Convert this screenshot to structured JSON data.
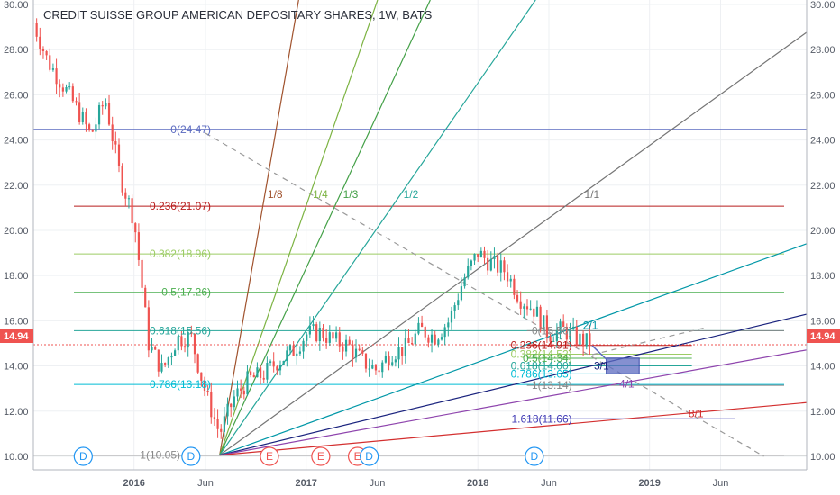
{
  "header": {
    "title": "CREDIT SUISSE GROUP AMERICAN DEPOSITARY SHARES, 1W, BATS"
  },
  "colors": {
    "up": "#26a69a",
    "down": "#ef5350",
    "grid": "#eef0f3",
    "price_line": "#ef5350"
  },
  "current_price": {
    "value": 14.94,
    "label": "14.94"
  },
  "chart_data": {
    "type": "candlestick",
    "title": "CREDIT SUISSE GROUP AMERICAN DEPOSITARY SHARES, 1W, BATS",
    "ylim": [
      9.4,
      30.2
    ],
    "xlim": [
      "2015-06-01",
      "2019-12-01"
    ],
    "y_ticks": [
      "10.00",
      "12.00",
      "14.00",
      "16.00",
      "18.00",
      "20.00",
      "22.00",
      "24.00",
      "26.00",
      "28.00",
      "30.00"
    ],
    "x_ticks": [
      {
        "label": "2016",
        "date": "2016-01-01",
        "bold": true
      },
      {
        "label": "Jun",
        "date": "2016-06-01",
        "bold": false
      },
      {
        "label": "2017",
        "date": "2017-01-01",
        "bold": true
      },
      {
        "label": "Jun",
        "date": "2017-06-01",
        "bold": false
      },
      {
        "label": "2018",
        "date": "2018-01-01",
        "bold": true
      },
      {
        "label": "Jun",
        "date": "2018-06-01",
        "bold": false
      },
      {
        "label": "2019",
        "date": "2019-01-01",
        "bold": true
      },
      {
        "label": "Jun",
        "date": "2019-06-01",
        "bold": false
      }
    ],
    "ohlc_path": [
      [
        "2015-06-01",
        29.2
      ],
      [
        "2015-07-01",
        27.5
      ],
      [
        "2015-08-01",
        26.5
      ],
      [
        "2015-09-01",
        25.4
      ],
      [
        "2015-10-01",
        24.2
      ],
      [
        "2015-11-01",
        25.8
      ],
      [
        "2015-12-01",
        22.5
      ],
      [
        "2016-01-01",
        20.5
      ],
      [
        "2016-02-01",
        15.0
      ],
      [
        "2016-03-01",
        13.8
      ],
      [
        "2016-04-01",
        15.2
      ],
      [
        "2016-05-01",
        15.3
      ],
      [
        "2016-06-01",
        12.8
      ],
      [
        "2016-07-01",
        11.0
      ],
      [
        "2016-08-01",
        12.6
      ],
      [
        "2016-09-01",
        13.4
      ],
      [
        "2016-10-01",
        13.6
      ],
      [
        "2016-11-01",
        14.2
      ],
      [
        "2016-12-01",
        14.6
      ],
      [
        "2017-01-01",
        15.4
      ],
      [
        "2017-02-01",
        15.5
      ],
      [
        "2017-03-01",
        15.1
      ],
      [
        "2017-04-01",
        14.9
      ],
      [
        "2017-05-01",
        14.2
      ],
      [
        "2017-06-01",
        13.8
      ],
      [
        "2017-07-01",
        14.6
      ],
      [
        "2017-08-01",
        14.8
      ],
      [
        "2017-09-01",
        15.6
      ],
      [
        "2017-10-01",
        15.3
      ],
      [
        "2017-11-01",
        16.0
      ],
      [
        "2017-12-01",
        17.8
      ],
      [
        "2018-01-01",
        19.0
      ],
      [
        "2018-02-01",
        18.5
      ],
      [
        "2018-03-01",
        18.2
      ],
      [
        "2018-04-01",
        17.0
      ],
      [
        "2018-05-01",
        16.5
      ],
      [
        "2018-06-01",
        15.4
      ],
      [
        "2018-07-01",
        15.6
      ],
      [
        "2018-08-01",
        15.2
      ],
      [
        "2018-09-01",
        14.94
      ]
    ],
    "fib_retracement": {
      "start_date": "2015-06-01",
      "end_date": "2019-10-01",
      "levels": [
        {
          "label": "0(24.47)",
          "value": 24.47,
          "color": "#5c6bc0"
        },
        {
          "label": "0.236(21.07)",
          "value": 21.07,
          "color": "#b71c1c"
        },
        {
          "label": "0.382(18.96)",
          "value": 18.96,
          "color": "#9ccc65"
        },
        {
          "label": "0.5(17.26)",
          "value": 17.26,
          "color": "#4caf50"
        },
        {
          "label": "0.618(15.56)",
          "value": 15.56,
          "color": "#26a69a"
        },
        {
          "label": "0.786(13.18)",
          "value": 13.18,
          "color": "#00bcd4"
        },
        {
          "label": "1(10.05)",
          "value": 10.05,
          "color": "#888888"
        }
      ]
    },
    "fib_retracement_2": {
      "start_date": "2018-07-01",
      "end_date": "2019-04-01",
      "levels": [
        {
          "label": "0(15.56)",
          "value": 15.56,
          "color": "#888888"
        },
        {
          "label": "0.236(14.91)",
          "value": 14.91,
          "color": "#b71c1c"
        },
        {
          "label": "0.382(14.52)",
          "value": 14.52,
          "color": "#9ccc65"
        },
        {
          "label": "0.5(14.34)",
          "value": 14.34,
          "color": "#4caf50"
        },
        {
          "label": "0.618(14.00)",
          "value": 14.0,
          "color": "#26a69a"
        },
        {
          "label": "0.786(13.65)",
          "value": 13.65,
          "color": "#00bcd4"
        },
        {
          "label": "1(13.14)",
          "value": 13.14,
          "color": "#888888"
        },
        {
          "label": "1.618(11.66)",
          "value": 11.66,
          "color": "#3f3ab5"
        }
      ]
    },
    "gann_fan": {
      "origin": {
        "date": "2016-07-01",
        "value": 10.05
      },
      "lines": [
        {
          "label": "1/8",
          "color": "#a0522d",
          "slope": 3.6,
          "label_value": 21.6
        },
        {
          "label": "1/4",
          "color": "#7cb342",
          "slope": 1.8,
          "label_value": 21.6
        },
        {
          "label": "1/3",
          "color": "#43a047",
          "slope": 1.35,
          "label_value": 21.6
        },
        {
          "label": "1/2",
          "color": "#26a69a",
          "slope": 0.9,
          "label_value": 21.6
        },
        {
          "label": "1/1",
          "color": "#757575",
          "slope": 0.45,
          "label_value": 21.6
        },
        {
          "label": "2/1",
          "color": "#0097a7",
          "slope": 0.225,
          "label_value": 15.8
        },
        {
          "label": "3/1",
          "color": "#1a237e",
          "slope": 0.15,
          "label_value": 14.0
        },
        {
          "label": "4/1",
          "color": "#8e44ad",
          "slope": 0.112,
          "label_value": 13.2
        },
        {
          "label": "8/1",
          "color": "#d32f2f",
          "slope": 0.056,
          "label_value": 11.9
        }
      ]
    },
    "trend_line": {
      "start": {
        "date": "2016-06-01",
        "value": 24.3
      },
      "end": {
        "date": "2019-09-01",
        "value": 10.0
      }
    },
    "box": {
      "start_date": "2018-10-01",
      "end_date": "2018-12-10",
      "top": 14.35,
      "bottom": 13.65
    },
    "events": [
      {
        "label": "D",
        "date": "2015-09-15",
        "color": "#2196f3"
      },
      {
        "label": "D",
        "date": "2016-05-01",
        "color": "#2196f3"
      },
      {
        "label": "E",
        "date": "2016-10-15",
        "color": "#ef5350"
      },
      {
        "label": "E",
        "date": "2017-02-01",
        "color": "#ef5350"
      },
      {
        "label": "E",
        "date": "2017-04-20",
        "color": "#ef5350"
      },
      {
        "label": "D",
        "date": "2017-05-15",
        "color": "#2196f3"
      },
      {
        "label": "D",
        "date": "2018-05-01",
        "color": "#2196f3"
      }
    ]
  }
}
